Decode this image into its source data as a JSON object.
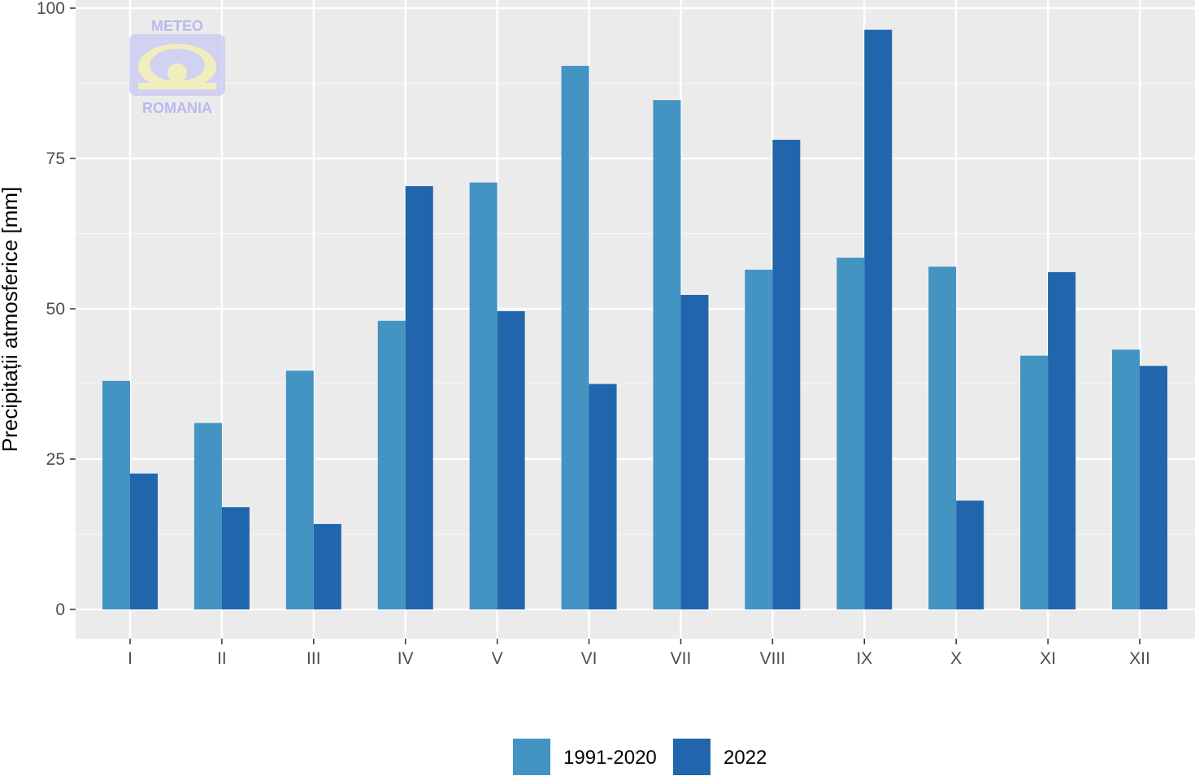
{
  "chart_data": {
    "type": "bar",
    "title": "",
    "xlabel": "",
    "ylabel": "Precipitații atmosferice [mm]",
    "ylim": [
      -5.5,
      100
    ],
    "yticks": [
      0,
      25,
      50,
      75,
      100
    ],
    "grid": true,
    "legend_position": "bottom",
    "categories": [
      "I",
      "II",
      "III",
      "IV",
      "V",
      "VI",
      "VII",
      "VIII",
      "IX",
      "X",
      "XI",
      "XII"
    ],
    "series": [
      {
        "name": "1991-2020",
        "color": "#4393c3",
        "values": [
          38.0,
          31.0,
          39.7,
          48.0,
          71.0,
          90.4,
          84.7,
          56.5,
          58.5,
          57.0,
          42.2,
          43.2
        ]
      },
      {
        "name": "2022",
        "color": "#2166ac",
        "values": [
          22.6,
          17.0,
          14.2,
          70.4,
          49.6,
          37.5,
          52.3,
          78.1,
          96.4,
          18.1,
          56.1,
          40.5
        ]
      }
    ]
  },
  "logo": {
    "top_text": "METEO",
    "bottom_text": "ROMANIA",
    "color": "#a9a9f0"
  }
}
